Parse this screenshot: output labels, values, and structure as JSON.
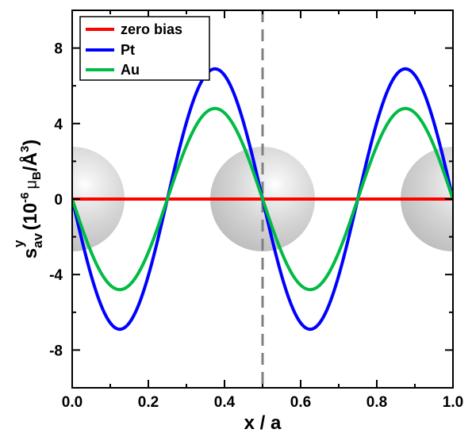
{
  "chart_data": {
    "type": "line",
    "xlabel": "x / a",
    "ylabel": {
      "symbol": "s",
      "superscript": "y",
      "subscript": "av",
      "unit_open": "(10",
      "unit_exp": "-6",
      "unit_mu": "μ",
      "unit_mu_sub": "B",
      "unit_div": "/Å",
      "unit_div_exp": "3",
      "unit_close": ")"
    },
    "xlim": [
      0,
      1
    ],
    "ylim": [
      -10,
      10
    ],
    "xticks": [
      "0.0",
      "0.2",
      "0.4",
      "0.6",
      "0.8",
      "1.0"
    ],
    "yticks": [
      "-8",
      "-4",
      "0",
      "4",
      "8"
    ],
    "vline_x": 0.5,
    "atom_positions_x": [
      0.0,
      0.5,
      1.0
    ],
    "legend_position": "top-left",
    "series": [
      {
        "name": "zero bias",
        "color": "#ff0000",
        "amplitude": 0.0,
        "function": "-A*sin(4*pi*x)",
        "x": [
          0,
          0.125,
          0.25,
          0.375,
          0.5,
          0.625,
          0.75,
          0.875,
          1.0
        ],
        "y": [
          0,
          0,
          0,
          0,
          0,
          0,
          0,
          0,
          0
        ]
      },
      {
        "name": "Pt",
        "color": "#0000ff",
        "amplitude": 6.9,
        "function": "-A*sin(4*pi*x)",
        "x": [
          0,
          0.125,
          0.25,
          0.375,
          0.5,
          0.625,
          0.75,
          0.875,
          1.0
        ],
        "y": [
          0,
          -6.9,
          0,
          6.9,
          0,
          -6.9,
          0,
          6.9,
          0
        ]
      },
      {
        "name": "Au",
        "color": "#00bb44",
        "amplitude": 4.8,
        "function": "-A*sin(4*pi*x)",
        "x": [
          0,
          0.125,
          0.25,
          0.375,
          0.5,
          0.625,
          0.75,
          0.875,
          1.0
        ],
        "y": [
          0,
          -4.8,
          0,
          4.8,
          0,
          -4.8,
          0,
          4.8,
          0
        ]
      }
    ]
  }
}
